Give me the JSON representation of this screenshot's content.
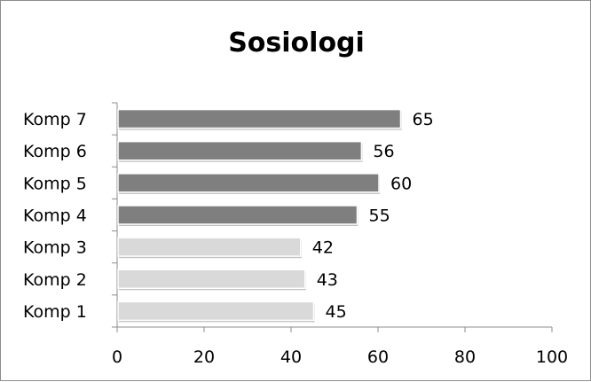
{
  "chart_data": {
    "type": "bar",
    "orientation": "horizontal",
    "title": "Sosiologi",
    "categories": [
      "Komp 1",
      "Komp 2",
      "Komp 3",
      "Komp 4",
      "Komp 5",
      "Komp 6",
      "Komp 7"
    ],
    "values": [
      45,
      43,
      42,
      55,
      60,
      56,
      65
    ],
    "bar_colors": [
      "#d9d9d9",
      "#d9d9d9",
      "#d9d9d9",
      "#7f7f7f",
      "#7f7f7f",
      "#7f7f7f",
      "#7f7f7f"
    ],
    "xlim": [
      0,
      100
    ],
    "xticks": [
      0,
      20,
      40,
      60,
      80,
      100
    ],
    "xlabel": "",
    "ylabel": "",
    "grid": false,
    "legend": "none",
    "data_labels": true
  }
}
